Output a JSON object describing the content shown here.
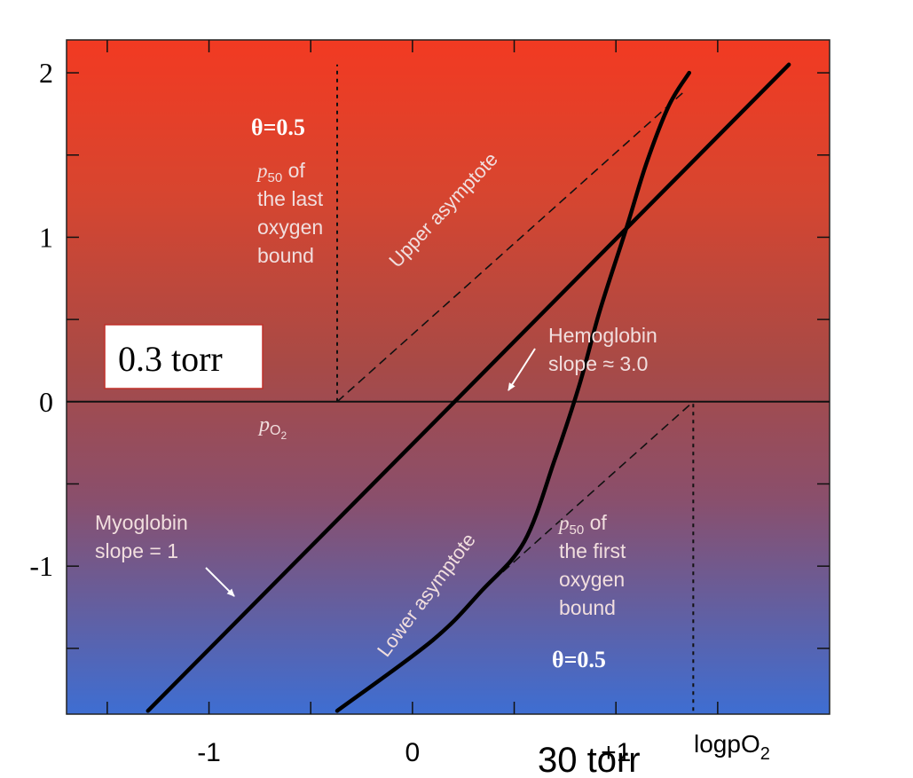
{
  "chart_data": {
    "type": "line",
    "xlabel": "logpO",
    "xlabel_subscript": "2",
    "xlim": [
      -1.7,
      2.05
    ],
    "ylim": [
      -1.9,
      2.2
    ],
    "x_ticks": [
      {
        "value": -1,
        "label": "-1"
      },
      {
        "value": 0,
        "label": "0"
      },
      {
        "value": 1,
        "label": "+1"
      }
    ],
    "y_ticks": [
      {
        "value": 2,
        "label": "2"
      },
      {
        "value": 1,
        "label": "1"
      },
      {
        "value": 0,
        "label": "0"
      },
      {
        "value": -1,
        "label": "-1"
      }
    ],
    "series": [
      {
        "label": "Myoglobin slope = 1",
        "x": [
          -1.3,
          1.85
        ],
        "y": [
          -1.88,
          2.05
        ]
      },
      {
        "label": "Hemoglobin slope ≈ 3.0",
        "x": [
          -0.37,
          0.1,
          0.34,
          0.55,
          0.7,
          0.82,
          0.92,
          1.05,
          1.15,
          1.26,
          1.36
        ],
        "y": [
          -1.88,
          -1.45,
          -1.15,
          -0.85,
          -0.35,
          0.1,
          0.55,
          1.05,
          1.45,
          1.8,
          2.0
        ]
      }
    ],
    "asymptotes": [
      {
        "label": "Upper asymptote",
        "x": [
          -0.37,
          1.33
        ],
        "y": [
          0,
          1.88
        ]
      },
      {
        "label": "Lower asymptote",
        "x": [
          0.34,
          1.38
        ],
        "y": [
          -1.15,
          0
        ]
      }
    ],
    "reference_lines": [
      {
        "x": -0.37,
        "y_range": [
          0,
          2.05
        ]
      },
      {
        "x": 1.38,
        "y_range": [
          -1.88,
          0
        ]
      }
    ],
    "annotations": {
      "theta_upper": "θ=0.5",
      "theta_lower": "θ=0.5",
      "p50_last": [
        "p50 of",
        "the last",
        "oxygen",
        "bound"
      ],
      "p50_first": [
        "p50 of",
        "the first",
        "oxygen",
        "bound"
      ],
      "po2_label": "pO2",
      "upper_asymptote": "Upper asymptote",
      "lower_asymptote": "Lower asymptote",
      "hemoglobin": [
        "Hemoglobin",
        "slope ≈ 3.0"
      ],
      "myoglobin": [
        "Myoglobin",
        "slope = 1"
      ]
    },
    "callouts": {
      "box_label": "0.3 torr",
      "bottom_label": "30 torr"
    },
    "colors": {
      "top": "#f23a22",
      "middle": "#9c4c58",
      "bottom": "#3e6ed2",
      "annotation_text": "#f1dede",
      "callout_border": "#c0302a"
    }
  }
}
